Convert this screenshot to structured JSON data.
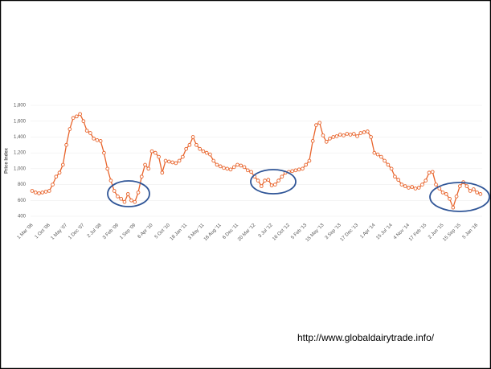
{
  "chart_data": {
    "type": "line",
    "ylabel": "Price Index",
    "source": "http://www.globaldairytrade.info/",
    "categories": [
      "1 Mar '06",
      null,
      null,
      null,
      null,
      "1 Oct '06",
      null,
      null,
      null,
      null,
      "1 May '07",
      null,
      null,
      null,
      null,
      "1 Dec '07",
      null,
      null,
      null,
      null,
      "2 Jul '08",
      null,
      null,
      null,
      null,
      "3 Feb '09",
      null,
      null,
      null,
      null,
      "1 Sep '09",
      null,
      null,
      null,
      null,
      "6 Apr '10",
      null,
      null,
      null,
      null,
      "5 Oct '10",
      null,
      null,
      null,
      null,
      "18 Jan '11",
      null,
      null,
      null,
      null,
      "3 May '11",
      null,
      null,
      null,
      null,
      "16 Aug '11",
      null,
      null,
      null,
      null,
      "6 Dec '11",
      null,
      null,
      null,
      null,
      "20 Mar '12",
      null,
      null,
      null,
      null,
      "3 Jul '12",
      null,
      null,
      null,
      null,
      "16 Oct '12",
      null,
      null,
      null,
      null,
      "5 Feb '13",
      null,
      null,
      null,
      null,
      "15 May '13",
      null,
      null,
      null,
      null,
      "3 Sep '13",
      null,
      null,
      null,
      null,
      "17 Dec '13",
      null,
      null,
      null,
      null,
      "1 Apr '14",
      null,
      null,
      null,
      null,
      "15 Jul '14",
      null,
      null,
      null,
      null,
      "4 Nov '14",
      null,
      null,
      null,
      null,
      "17 Feb '15",
      null,
      null,
      null,
      null,
      "2 Jun '15",
      null,
      null,
      null,
      null,
      "15 Sep '15",
      null,
      null,
      null,
      null,
      "5 Jan '16",
      null
    ],
    "values": [
      720,
      700,
      690,
      700,
      710,
      720,
      800,
      900,
      950,
      1050,
      1300,
      1500,
      1640,
      1660,
      1690,
      1600,
      1480,
      1450,
      1380,
      1360,
      1350,
      1200,
      1000,
      850,
      720,
      650,
      620,
      580,
      680,
      600,
      580,
      700,
      900,
      1050,
      1000,
      1220,
      1200,
      1150,
      950,
      1100,
      1090,
      1080,
      1070,
      1100,
      1150,
      1250,
      1300,
      1400,
      1300,
      1250,
      1220,
      1200,
      1180,
      1100,
      1050,
      1030,
      1010,
      1000,
      990,
      1020,
      1050,
      1040,
      1020,
      980,
      960,
      900,
      850,
      780,
      850,
      860,
      790,
      800,
      850,
      900,
      950,
      960,
      970,
      980,
      990,
      1000,
      1050,
      1100,
      1350,
      1550,
      1580,
      1420,
      1340,
      1380,
      1400,
      1410,
      1430,
      1420,
      1440,
      1430,
      1440,
      1410,
      1450,
      1460,
      1470,
      1400,
      1200,
      1180,
      1150,
      1100,
      1050,
      1000,
      900,
      860,
      800,
      780,
      760,
      770,
      750,
      760,
      800,
      850,
      950,
      960,
      800,
      750,
      700,
      680,
      620,
      510,
      650,
      780,
      830,
      780,
      720,
      740,
      700,
      680
    ],
    "color": "#e8642c",
    "ylim": [
      400,
      1800
    ],
    "yticks": [
      400,
      600,
      800,
      {
        "value": 1000,
        "label": "1,000"
      },
      {
        "value": 1200,
        "label": "1,200"
      },
      {
        "value": 1400,
        "label": "1,400"
      },
      {
        "value": 1600,
        "label": "1,600"
      },
      {
        "value": 1800,
        "label": "1,800"
      }
    ],
    "grid": true
  }
}
